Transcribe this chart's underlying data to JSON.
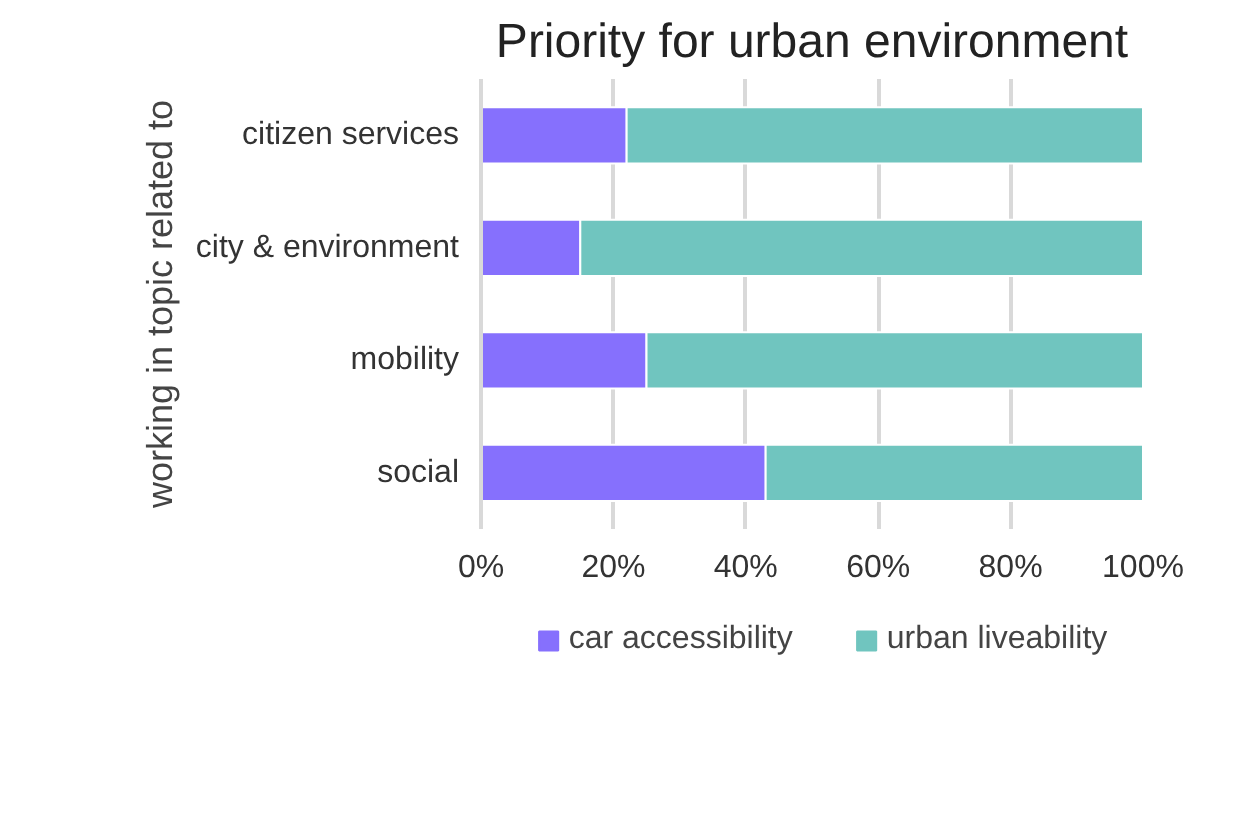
{
  "chart_data": {
    "type": "bar",
    "orientation": "horizontal",
    "stacked": true,
    "title": "Priority for urban environment",
    "ylabel": "working in topic related to",
    "categories": [
      "citizen services",
      "city & environment",
      "mobility",
      "social"
    ],
    "series": [
      {
        "name": "car accessibility",
        "color": "#8670fd",
        "values": [
          22,
          15,
          25,
          43
        ]
      },
      {
        "name": "urban liveability",
        "color": "#70c5bf",
        "values": [
          78,
          85,
          75,
          57
        ]
      }
    ],
    "xlim": [
      0,
      100
    ],
    "xticks": [
      {
        "value": 0,
        "label": "0%"
      },
      {
        "value": 20,
        "label": "20%"
      },
      {
        "value": 40,
        "label": "40%"
      },
      {
        "value": 60,
        "label": "60%"
      },
      {
        "value": 80,
        "label": "80%"
      },
      {
        "value": 100,
        "label": "100%"
      }
    ],
    "grid": "x",
    "legend": "bottom"
  }
}
